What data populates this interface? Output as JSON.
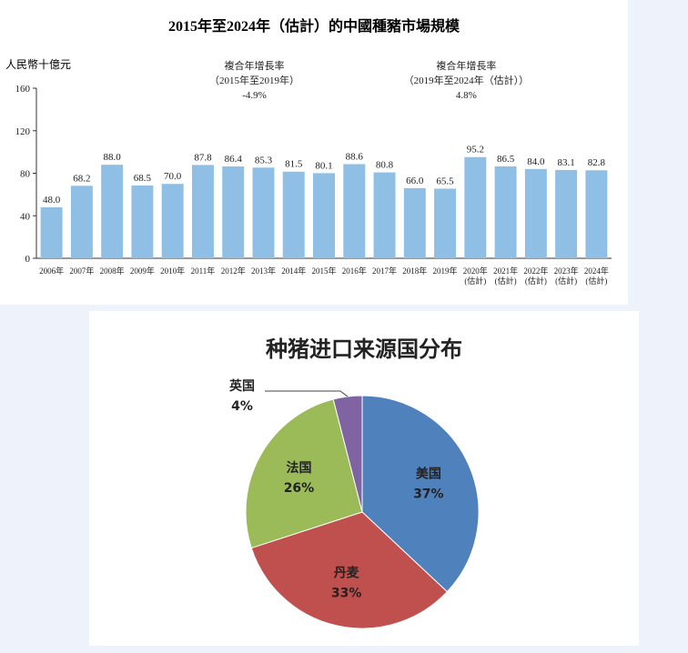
{
  "chart_data": [
    {
      "type": "bar",
      "title": "2015年至2024年（估計）的中國種豬市場規模",
      "ylabel": "人民幣十億元",
      "ylim": [
        0,
        160
      ],
      "yticks": [
        0,
        40,
        80,
        120,
        160
      ],
      "categories": [
        [
          "2006年"
        ],
        [
          "2007年"
        ],
        [
          "2008年"
        ],
        [
          "2009年"
        ],
        [
          "2010年"
        ],
        [
          "2011年"
        ],
        [
          "2012年"
        ],
        [
          "2013年"
        ],
        [
          "2014年"
        ],
        [
          "2015年"
        ],
        [
          "2016年"
        ],
        [
          "2017年"
        ],
        [
          "2018年"
        ],
        [
          "2019年"
        ],
        [
          "2020年",
          "(估計)"
        ],
        [
          "2021年",
          "(估計)"
        ],
        [
          "2022年",
          "(估計)"
        ],
        [
          "2023年",
          "(估計)"
        ],
        [
          "2024年",
          "(估計)"
        ]
      ],
      "values": [
        48.0,
        68.2,
        88.0,
        68.5,
        70.0,
        87.8,
        86.4,
        85.3,
        81.5,
        80.1,
        88.6,
        80.8,
        66.0,
        65.5,
        95.2,
        86.5,
        84.0,
        83.1,
        82.8
      ],
      "value_labels": [
        "48.0",
        "68.2",
        "88.0",
        "68.5",
        "70.0",
        "87.8",
        "86.4",
        "85.3",
        "81.5",
        "80.1",
        "88.6",
        "80.8",
        "66.0",
        "65.5",
        "95.2",
        "86.5",
        "84.0",
        "83.1",
        "82.8"
      ],
      "bar_color": "#8fbfe4",
      "grid": false,
      "annotations": [
        {
          "lines": [
            "複合年增長率",
            "（2015年至2019年）",
            "-4.9%"
          ]
        },
        {
          "lines": [
            "複合年增長率",
            "（2019年至2024年（估計））",
            "4.8%"
          ]
        }
      ]
    },
    {
      "type": "pie",
      "title": "种猪进口来源国分布",
      "slices": [
        {
          "label": "美国",
          "value": 37,
          "pct_label": "37%",
          "color": "#4f81bd"
        },
        {
          "label": "丹麦",
          "value": 33,
          "pct_label": "33%",
          "color": "#c0504d"
        },
        {
          "label": "法国",
          "value": 26,
          "pct_label": "26%",
          "color": "#9bbb59"
        },
        {
          "label": "英国",
          "value": 4,
          "pct_label": "4%",
          "color": "#8064a2"
        }
      ]
    }
  ]
}
